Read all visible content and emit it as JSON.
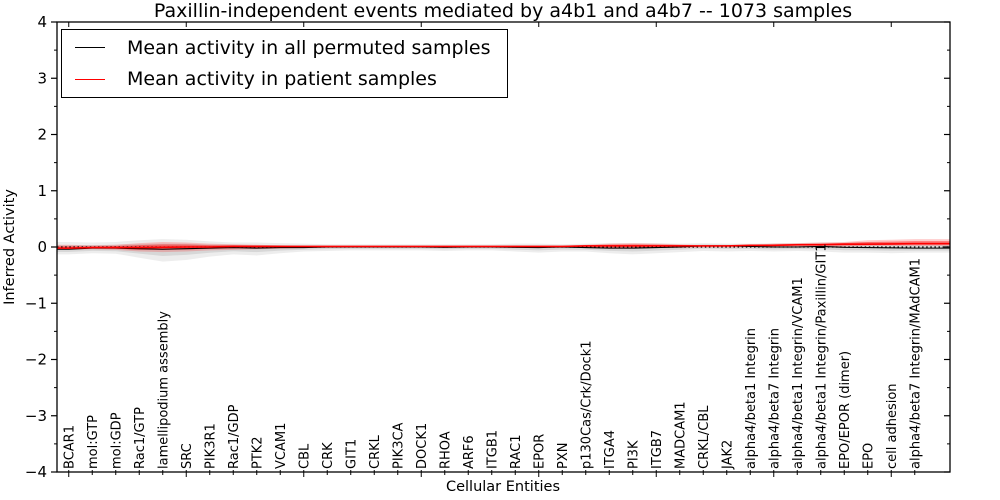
{
  "title": "Paxillin-independent events mediated by a4b1 and a4b7 -- 1073 samples",
  "axes": {
    "ylabel": "Inferred Activity",
    "xlabel": "Cellular Entities"
  },
  "legend": {
    "position": "upper left",
    "items": [
      {
        "label": "Mean activity in all permuted samples",
        "color": "#000000"
      },
      {
        "label": "Mean activity in patient samples",
        "color": "#ff0000"
      }
    ]
  },
  "colors": {
    "permuted_line": "#000000",
    "patient_line": "#ff0000",
    "permuted_band": "rgba(0,0,0,0.07)",
    "permuted_band_inner": "rgba(0,0,0,0.09)",
    "patient_band": "rgba(255,0,0,0.20)",
    "patient_band_inner": "rgba(255,0,0,0.42)",
    "zero_line": "#000000",
    "spine": "#000000"
  },
  "chart_data": {
    "type": "line",
    "title": "Paxillin-independent events mediated by a4b1 and a4b7 -- 1073 samples",
    "xlabel": "Cellular Entities",
    "ylabel": "Inferred Activity",
    "ylim": [
      -4,
      4
    ],
    "yticks": [
      -4,
      -3,
      -2,
      -1,
      0,
      1,
      2,
      3,
      4
    ],
    "y_minor_tick_step": 0.5,
    "x_major_tick_every": 5,
    "x_tick_rotation": 90,
    "grid": false,
    "zero_line_style": "dotted",
    "legend_position": "upper left",
    "categories": [
      "BCAR1",
      "mol:GTP",
      "mol:GDP",
      "Rac1/GTP",
      "lamellipodium assembly",
      "SRC",
      "PIK3R1",
      "Rac1/GDP",
      "PTK2",
      "VCAM1",
      "CBL",
      "CRK",
      "GIT1",
      "CRKL",
      "PIK3CA",
      "DOCK1",
      "RHOA",
      "ARF6",
      "ITGB1",
      "RAC1",
      "EPOR",
      "PXN",
      "p130Cas/Crk/Dock1",
      "ITGA4",
      "PI3K",
      "ITGB7",
      "MADCAM1",
      "CRKL/CBL",
      "JAK2",
      "alpha4/beta1 Integrin",
      "alpha4/beta7 Integrin",
      "alpha4/beta1 Integrin/VCAM1",
      "alpha4/beta1 Integrin/Paxillin/GIT1",
      "EPO/EPOR (dimer)",
      "EPO",
      "cell adhesion",
      "alpha4/beta7 Integrin/MAdCAM1"
    ],
    "series": [
      {
        "name": "Mean activity in all permuted samples",
        "color": "#000000",
        "values": [
          -0.04,
          -0.02,
          -0.02,
          -0.03,
          -0.04,
          -0.03,
          -0.02,
          -0.01,
          -0.02,
          -0.01,
          -0.01,
          0.0,
          0.0,
          0.0,
          0.0,
          0.0,
          -0.005,
          0.0,
          0.0,
          -0.005,
          -0.01,
          0.0,
          -0.01,
          -0.02,
          -0.02,
          -0.01,
          0.0,
          0.02,
          0.02,
          0.01,
          0.0,
          0.0,
          0.01,
          -0.005,
          -0.01,
          -0.015,
          -0.02
        ]
      },
      {
        "name": "Mean activity in patient samples",
        "color": "#ff0000",
        "values": [
          -0.02,
          -0.01,
          -0.01,
          -0.01,
          -0.005,
          0.0,
          0.0,
          0.01,
          0.01,
          0.01,
          0.01,
          0.01,
          0.01,
          0.01,
          0.01,
          0.01,
          0.01,
          0.01,
          0.01,
          0.01,
          0.01,
          0.01,
          0.02,
          0.02,
          0.02,
          0.02,
          0.02,
          0.02,
          0.02,
          0.03,
          0.03,
          0.04,
          0.04,
          0.05,
          0.05,
          0.055,
          0.06
        ]
      }
    ],
    "bands": [
      {
        "name": "permuted samples range",
        "upper": [
          0.09,
          0.08,
          0.09,
          0.12,
          0.14,
          0.13,
          0.1,
          0.08,
          0.08,
          0.07,
          0.06,
          0.05,
          0.05,
          0.05,
          0.05,
          0.05,
          0.05,
          0.05,
          0.05,
          0.06,
          0.06,
          0.05,
          0.06,
          0.07,
          0.07,
          0.07,
          0.06,
          0.07,
          0.06,
          0.06,
          0.07,
          0.07,
          0.08,
          0.08,
          0.09,
          0.08,
          0.08
        ],
        "lower": [
          -0.13,
          -0.11,
          -0.12,
          -0.19,
          -0.26,
          -0.23,
          -0.17,
          -0.13,
          -0.15,
          -0.11,
          -0.08,
          -0.07,
          -0.06,
          -0.06,
          -0.06,
          -0.06,
          -0.07,
          -0.06,
          -0.06,
          -0.08,
          -0.1,
          -0.08,
          -0.08,
          -0.11,
          -0.13,
          -0.11,
          -0.09,
          -0.07,
          -0.08,
          -0.07,
          -0.08,
          -0.07,
          -0.08,
          -0.1,
          -0.1,
          -0.11,
          -0.1
        ]
      },
      {
        "name": "patient samples range",
        "upper": [
          0.04,
          0.03,
          0.04,
          0.07,
          0.09,
          0.08,
          0.06,
          0.05,
          0.04,
          0.03,
          0.02,
          0.02,
          0.015,
          0.015,
          0.015,
          0.015,
          0.015,
          0.015,
          0.015,
          0.02,
          0.02,
          0.02,
          0.04,
          0.06,
          0.07,
          0.06,
          0.05,
          0.03,
          0.03,
          0.04,
          0.06,
          0.07,
          0.08,
          0.09,
          0.12,
          0.13,
          0.14
        ],
        "lower": [
          -0.05,
          -0.04,
          -0.05,
          -0.08,
          -0.09,
          -0.08,
          -0.06,
          -0.05,
          -0.04,
          -0.03,
          -0.02,
          -0.015,
          -0.01,
          -0.01,
          -0.01,
          -0.01,
          -0.01,
          -0.01,
          -0.01,
          -0.015,
          -0.015,
          -0.01,
          -0.02,
          -0.03,
          -0.03,
          -0.02,
          -0.02,
          -0.01,
          -0.01,
          0.0,
          0.0,
          0.01,
          0.01,
          0.01,
          0.02,
          0.02,
          0.02
        ]
      }
    ]
  }
}
